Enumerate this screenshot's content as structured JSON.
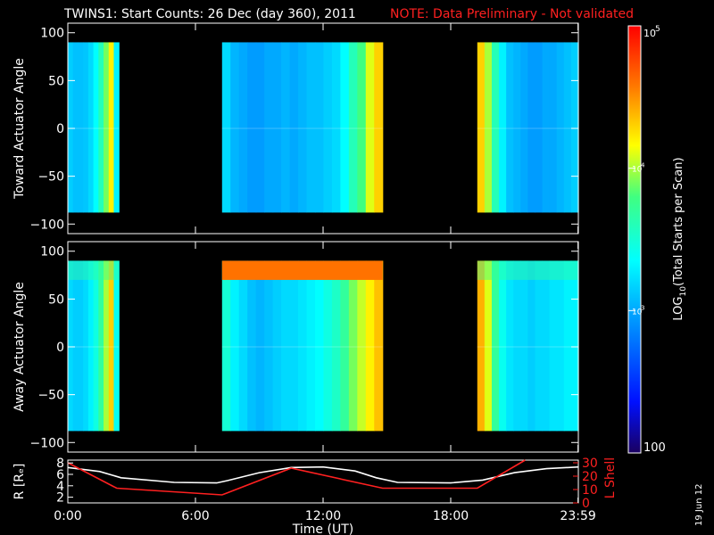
{
  "header": {
    "title": "TWINS1: Start Counts: 26 Dec (day 360), 2011",
    "note": "NOTE: Data Preliminary - Not validated",
    "note_color": "#ff2020"
  },
  "datestamp": "19 Jun 12",
  "chart_data": [
    {
      "type": "heatmap",
      "panel": "toward",
      "ylabel": "Toward Actuator Angle",
      "ylim": [
        -110,
        110
      ],
      "yticks": [
        100,
        50,
        0,
        -50,
        -100
      ],
      "ytick_labels": [
        "100",
        "50",
        "0",
        "−50",
        "−100"
      ],
      "xlim": [
        0,
        24
      ],
      "data_y_range": [
        -88,
        90
      ],
      "intervals": [
        {
          "start": 0.0,
          "end": 2.4,
          "log_values": [
            3.15,
            3.1,
            3.1,
            3.12,
            3.2,
            3.35,
            3.6,
            3.9,
            4.2,
            3.3
          ]
        },
        {
          "start": 7.25,
          "end": 14.8,
          "log_values": [
            3.2,
            3.05,
            3.0,
            2.95,
            2.95,
            3.0,
            3.0,
            3.05,
            3.0,
            3.05,
            3.1,
            3.1,
            3.15,
            3.2,
            3.35,
            3.6,
            3.8,
            4.1,
            4.3
          ]
        },
        {
          "start": 19.25,
          "end": 24.0,
          "log_values": [
            4.3,
            4.0,
            3.6,
            3.3,
            3.1,
            3.05,
            3.0,
            2.95,
            2.95,
            3.0,
            3.0,
            3.05,
            3.1,
            3.15
          ]
        }
      ]
    },
    {
      "type": "heatmap",
      "panel": "away",
      "ylabel": "Away Actuator Angle",
      "ylim": [
        -110,
        110
      ],
      "yticks": [
        100,
        50,
        0,
        -50,
        -100
      ],
      "ytick_labels": [
        "100",
        "50",
        "0",
        "−50",
        "−100"
      ],
      "xlim": [
        0,
        24
      ],
      "data_y_range": [
        -88,
        90
      ],
      "intervals": [
        {
          "start": 0.0,
          "end": 2.4,
          "log_values": [
            3.2,
            3.15,
            3.15,
            3.2,
            3.3,
            3.45,
            3.7,
            4.0,
            4.3,
            3.4
          ]
        },
        {
          "start": 7.25,
          "end": 14.8,
          "log_values": [
            3.5,
            3.3,
            3.2,
            3.1,
            3.05,
            3.1,
            3.15,
            3.2,
            3.2,
            3.25,
            3.3,
            3.35,
            3.45,
            3.55,
            3.7,
            3.9,
            4.05,
            4.2,
            4.35
          ]
        },
        {
          "start": 19.25,
          "end": 24.0,
          "log_values": [
            4.4,
            4.1,
            3.7,
            3.4,
            3.25,
            3.2,
            3.2,
            3.15,
            3.2,
            3.2,
            3.25,
            3.25,
            3.3,
            3.3
          ]
        }
      ],
      "top_band": {
        "y_from": 70,
        "y_to": 90,
        "log_value": 4.6
      }
    },
    {
      "type": "line",
      "panel": "orbit",
      "ylabel_left": "R [Rₑ]",
      "ylabel_right": "L Shell",
      "ylim_left": [
        1,
        8.5
      ],
      "yticks_left": [
        8,
        6,
        4,
        2
      ],
      "ylim_right": [
        0,
        32
      ],
      "yticks_right": [
        30,
        20,
        10,
        0
      ],
      "xlabel": "Time (UT)",
      "xticks": [
        0,
        6,
        12,
        18,
        23.983
      ],
      "xtick_labels": [
        "0:00",
        "6:00",
        "12:00",
        "18:00",
        "23:59"
      ],
      "series": [
        {
          "axis": "left",
          "color": "#ffffff",
          "x": [
            0,
            1.5,
            2.5,
            5,
            7,
            7.5,
            9,
            10.5,
            12,
            13.5,
            14.5,
            15.5,
            18,
            19.5,
            21,
            22.5,
            24
          ],
          "y": [
            7.2,
            6.5,
            5.4,
            4.6,
            4.5,
            4.9,
            6.3,
            7.2,
            7.3,
            6.6,
            5.4,
            4.6,
            4.5,
            5.0,
            6.3,
            7.0,
            7.3
          ]
        },
        {
          "axis": "right",
          "color": "#ff2020",
          "x": [
            0,
            2.3,
            7.25,
            10.5,
            14.8,
            19.25,
            21.5
          ],
          "y": [
            30,
            11,
            6,
            26,
            11,
            11,
            32
          ]
        }
      ]
    }
  ],
  "colorbar": {
    "label_prefix": "LOG",
    "label_sub": "10",
    "label_suffix": "(Total Starts per Scan)",
    "min_label": "100",
    "top_label_base": "10",
    "top_label_exp": "5",
    "mid_labels": [
      {
        "base": "10",
        "exp": "4",
        "log": 4
      },
      {
        "base": "10",
        "exp": "3",
        "log": 3
      }
    ],
    "log_range": [
      2,
      5
    ]
  }
}
